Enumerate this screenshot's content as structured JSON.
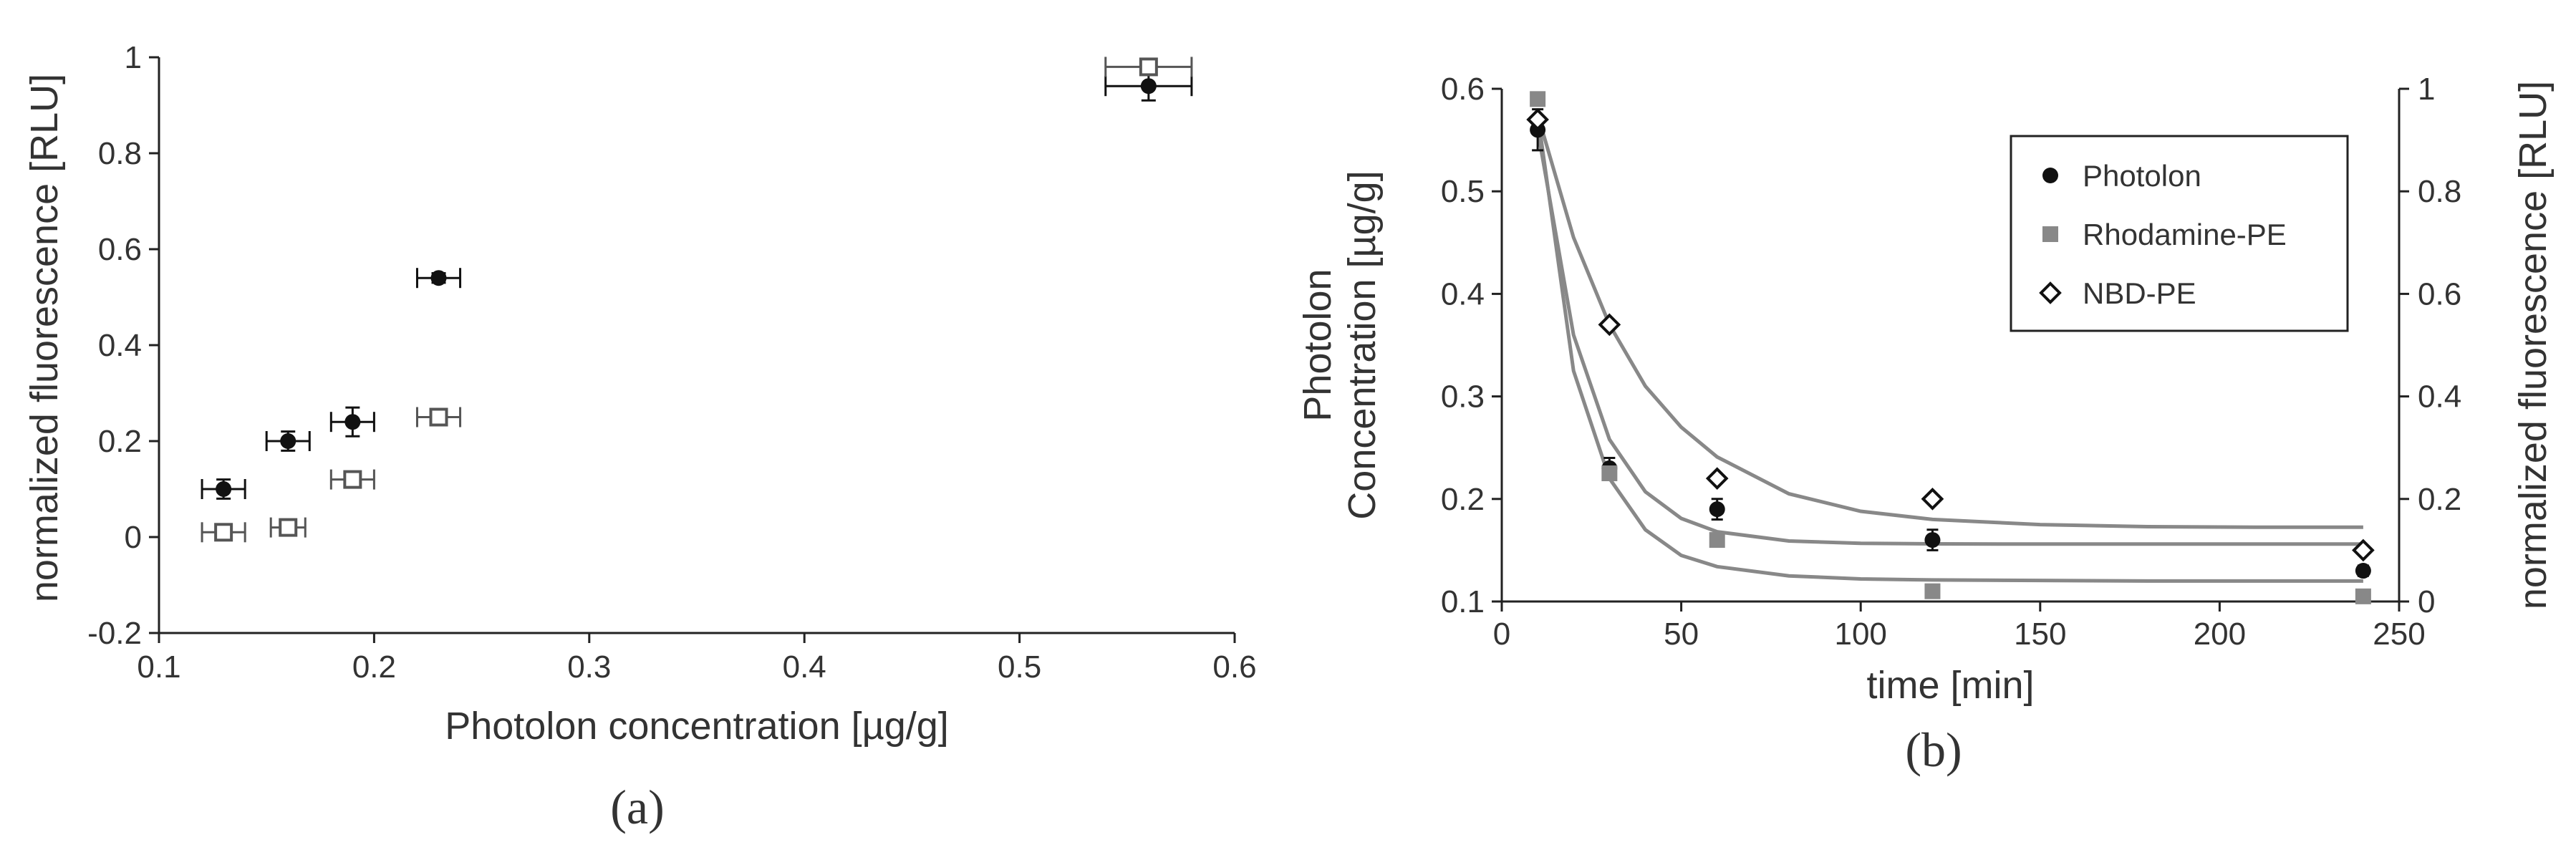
{
  "chart_data": [
    {
      "type": "scatter",
      "panel_label": "(a)",
      "xlabel": "Photolon concentration [µg/g]",
      "ylabel": "normalized fluorescence [RLU]",
      "xlim": [
        0.1,
        0.6
      ],
      "ylim": [
        -0.2,
        1.0
      ],
      "xticks": [
        "0.1",
        "0.2",
        "0.3",
        "0.4",
        "0.5",
        "0.6"
      ],
      "yticks": [
        "-0.2",
        "0",
        "0.2",
        "0.4",
        "0.6",
        "0.8",
        "1"
      ],
      "grid": false,
      "series": [
        {
          "marker": "filled-circle",
          "color": "#111111",
          "points": [
            {
              "x": 0.13,
              "y": 0.1,
              "xerr": 0.01,
              "yerr": 0.02
            },
            {
              "x": 0.16,
              "y": 0.2,
              "xerr": 0.01,
              "yerr": 0.02
            },
            {
              "x": 0.19,
              "y": 0.24,
              "xerr": 0.01,
              "yerr": 0.03
            },
            {
              "x": 0.23,
              "y": 0.54,
              "xerr": 0.01,
              "yerr": 0.01
            },
            {
              "x": 0.56,
              "y": 0.94,
              "xerr": 0.02,
              "yerr": 0.03
            }
          ]
        },
        {
          "marker": "open-square",
          "color": "#555555",
          "points": [
            {
              "x": 0.13,
              "y": 0.01,
              "xerr": 0.01,
              "yerr": 0.01
            },
            {
              "x": 0.16,
              "y": 0.02,
              "xerr": 0.008,
              "yerr": 0.01
            },
            {
              "x": 0.19,
              "y": 0.12,
              "xerr": 0.01,
              "yerr": 0.015
            },
            {
              "x": 0.23,
              "y": 0.25,
              "xerr": 0.01,
              "yerr": 0.015
            },
            {
              "x": 0.56,
              "y": 0.98,
              "xerr": 0.02,
              "yerr": 0.015
            }
          ]
        }
      ]
    },
    {
      "type": "scatter",
      "panel_label": "(b)",
      "xlabel": "time [min]",
      "ylabel_left": [
        "Photolon",
        "Concentration [µg/g]"
      ],
      "ylabel_right": "normalized fluorescence [RLU]",
      "xlim": [
        0,
        250
      ],
      "ylim_left": [
        0.1,
        0.6
      ],
      "ylim_right": [
        0,
        1
      ],
      "xticks": [
        "0",
        "50",
        "100",
        "150",
        "200",
        "250"
      ],
      "yticks_left": [
        "0.1",
        "0.2",
        "0.3",
        "0.4",
        "0.5",
        "0.6"
      ],
      "yticks_right": [
        "0",
        "0.2",
        "0.4",
        "0.6",
        "0.8",
        "1"
      ],
      "grid": false,
      "legend_position": "top-right",
      "series": [
        {
          "name": "Photolon",
          "axis": "left",
          "marker": "filled-circle",
          "color": "#111111",
          "x": [
            10,
            30,
            60,
            120,
            240
          ],
          "y": [
            0.56,
            0.23,
            0.19,
            0.16,
            0.13
          ],
          "yerr": [
            0.02,
            0.01,
            0.01,
            0.01,
            0.005
          ]
        },
        {
          "name": "Rhodamine-PE",
          "axis": "right",
          "marker": "filled-square",
          "color": "#888888",
          "x": [
            10,
            30,
            60,
            120,
            240
          ],
          "y": [
            0.98,
            0.25,
            0.12,
            0.02,
            0.01
          ]
        },
        {
          "name": "NBD-PE",
          "axis": "right",
          "marker": "open-diamond",
          "color": "#111111",
          "x": [
            10,
            30,
            60,
            120,
            240
          ],
          "y": [
            0.94,
            0.54,
            0.24,
            0.2,
            0.1
          ]
        }
      ],
      "fit_curves": [
        {
          "axis": "left",
          "color": "#888888",
          "x": [
            10,
            20,
            30,
            40,
            50,
            60,
            80,
            100,
            120,
            150,
            180,
            210,
            240
          ],
          "y": [
            0.56,
            0.36,
            0.258,
            0.207,
            0.181,
            0.168,
            0.159,
            0.1567,
            0.1562,
            0.156,
            0.156,
            0.156,
            0.156
          ]
        },
        {
          "axis": "right",
          "color": "#888888",
          "x": [
            10,
            20,
            30,
            40,
            50,
            60,
            80,
            100,
            120,
            150,
            180,
            210,
            240
          ],
          "y": [
            0.95,
            0.45,
            0.24,
            0.14,
            0.09,
            0.068,
            0.05,
            0.044,
            0.042,
            0.041,
            0.04,
            0.04,
            0.04
          ]
        },
        {
          "axis": "right",
          "color": "#888888",
          "x": [
            10,
            20,
            30,
            40,
            50,
            60,
            80,
            100,
            120,
            150,
            180,
            210,
            240
          ],
          "y": [
            0.95,
            0.71,
            0.54,
            0.42,
            0.34,
            0.282,
            0.21,
            0.176,
            0.16,
            0.15,
            0.146,
            0.145,
            0.145
          ]
        }
      ]
    }
  ]
}
